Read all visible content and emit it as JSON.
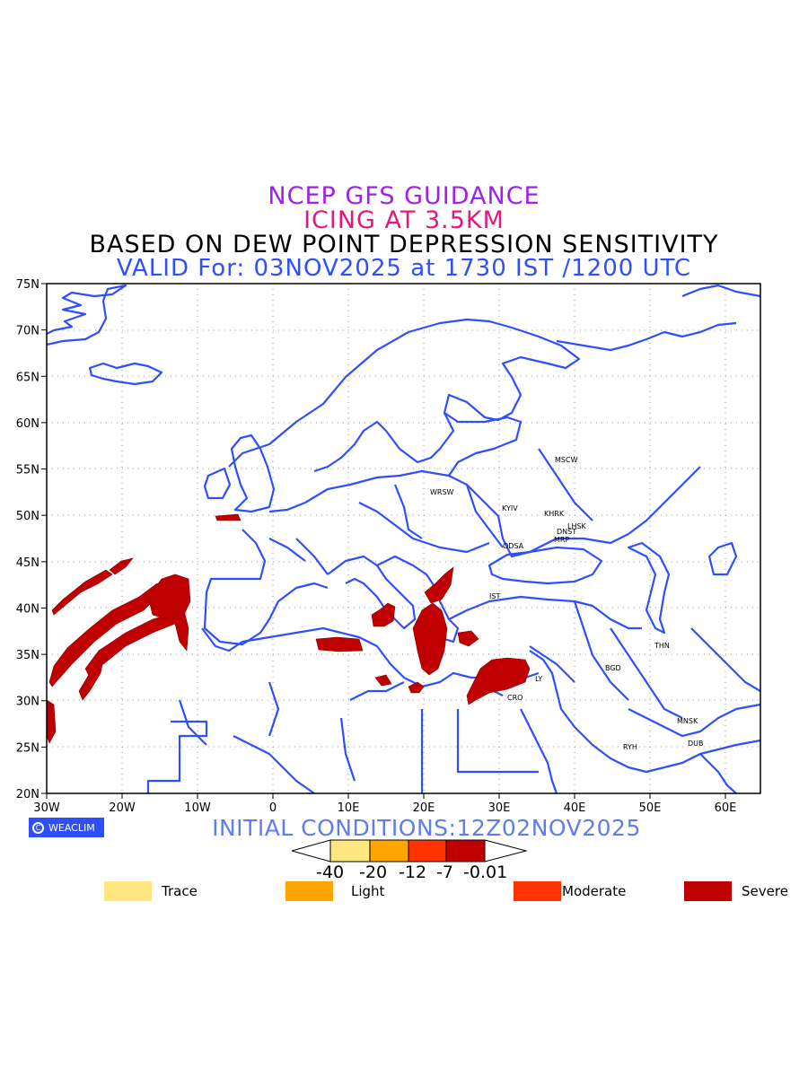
{
  "titles": {
    "line1": "NCEP GFS GUIDANCE",
    "line2": "ICING AT 3.5KM",
    "line3": "BASED ON DEW POINT DEPRESSION SENSITIVITY",
    "line4": "VALID For: 03NOV2025 at 1730 IST /1200 UTC"
  },
  "axes": {
    "y_labels": [
      "75N",
      "70N",
      "65N",
      "60N",
      "55N",
      "50N",
      "45N",
      "40N",
      "35N",
      "30N",
      "25N",
      "20N"
    ],
    "x_labels": [
      "30W",
      "20W",
      "10W",
      "0",
      "10E",
      "20E",
      "30E",
      "40E",
      "50E",
      "60E"
    ]
  },
  "cities": [
    "MSCW",
    "WRSW",
    "KYIV",
    "KHRK",
    "LHSK",
    "DNST",
    "MRP",
    "ODSA",
    "IST",
    "THN",
    "BGD",
    "LY",
    "CRO",
    "MNSK",
    "DUB",
    "RYH"
  ],
  "logo": {
    "text": "WEACLIM",
    "icon": "weaclim-logo-icon"
  },
  "initial_conditions": "INITIAL CONDITIONS:12Z02NOV2025",
  "colorbar": {
    "ticks": [
      "-40",
      "-20",
      "-12",
      "-7",
      "-0.01"
    ],
    "colors": [
      "#ffe680",
      "#ffa500",
      "#ff3300",
      "#c00000"
    ]
  },
  "legend": [
    {
      "label": "Trace",
      "color": "#ffe680"
    },
    {
      "label": "Light",
      "color": "#ffa500"
    },
    {
      "label": "Moderate",
      "color": "#ff3300"
    },
    {
      "label": "Severe",
      "color": "#c00000"
    }
  ],
  "colors": {
    "coast": "#2f4fff",
    "severe": "#c00000"
  }
}
